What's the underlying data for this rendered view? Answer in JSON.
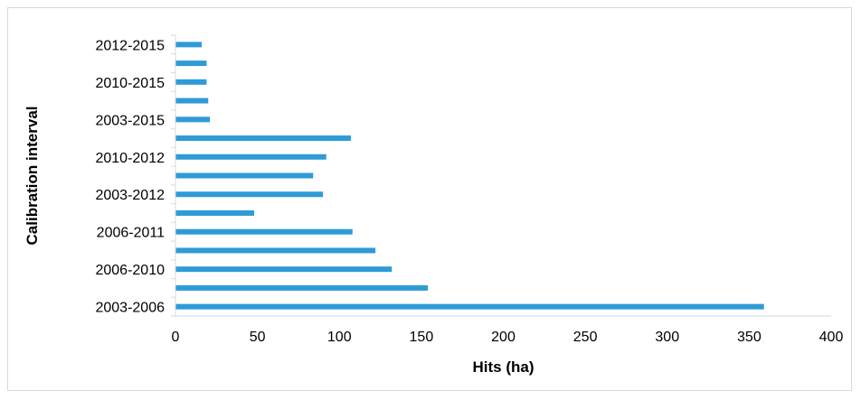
{
  "chart_data": {
    "type": "bar",
    "orientation": "horizontal",
    "categories": [
      "2003-2006",
      "",
      "2006-2010",
      "",
      "2006-2011",
      "",
      "2003-2012",
      "",
      "2010-2012",
      "",
      "2003-2015",
      "",
      "2010-2015",
      "",
      "2012-2015"
    ],
    "values": [
      359,
      154,
      132,
      122,
      108,
      48,
      90,
      84,
      92,
      107,
      21,
      20,
      19,
      19,
      16
    ],
    "xlabel": "Hits (ha)",
    "ylabel": "Calibration interval",
    "xlim": [
      0,
      400
    ],
    "xticks": [
      "0",
      "50",
      "100",
      "150",
      "200",
      "250",
      "300",
      "350",
      "400"
    ],
    "grid": false,
    "legend": "none",
    "bar_color": "#2e9bd6"
  }
}
